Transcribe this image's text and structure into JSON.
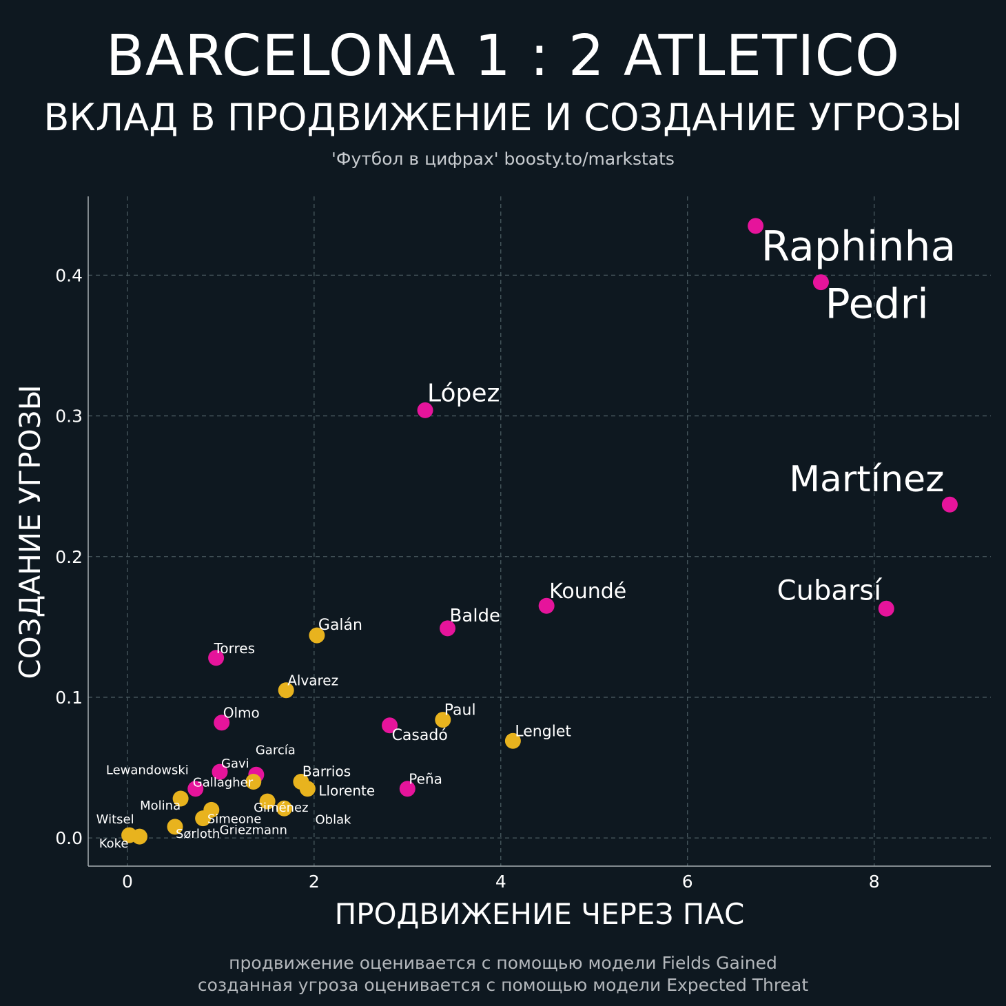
{
  "header": {
    "title": "BARCELONA 1 : 2 ATLETICO",
    "subtitle": "ВКЛАД В ПРОДВИЖЕНИЕ И СОЗДАНИЕ УГРОЗЫ",
    "credit": "'Футбол в цифрах' boosty.to/markstats"
  },
  "footer": {
    "line1": "продвижение оценивается с помощью модели Fields Gained",
    "line2": "созданная угроза оценивается с помощью модели Expected Threat"
  },
  "colors": {
    "background": "#0e1820",
    "barcelona": "#e6149b",
    "atletico": "#e8b31e"
  },
  "chart_data": {
    "type": "scatter",
    "xlabel": "ПРОДВИЖЕНИЕ ЧЕРЕЗ ПАС",
    "ylabel": "СОЗДАНИЕ УГРОЗЫ",
    "xlim": [
      -0.42,
      9.25
    ],
    "ylim": [
      -0.02,
      0.456
    ],
    "xticks": [
      0,
      2,
      4,
      6,
      8
    ],
    "xtick_labels": [
      "0",
      "2",
      "4",
      "6",
      "8"
    ],
    "yticks": [
      0.0,
      0.1,
      0.2,
      0.3,
      0.4
    ],
    "ytick_labels": [
      "0.0",
      "0.1",
      "0.2",
      "0.3",
      "0.4"
    ],
    "grid": true,
    "series": [
      {
        "name": "Barcelona",
        "color": "#e6149b",
        "points": [
          {
            "name": "Raphinha",
            "x": 6.73,
            "y": 0.435
          },
          {
            "name": "Pedri",
            "x": 7.43,
            "y": 0.395
          },
          {
            "name": "López",
            "x": 3.19,
            "y": 0.304
          },
          {
            "name": "Martínez",
            "x": 8.81,
            "y": 0.237
          },
          {
            "name": "Koundé",
            "x": 4.49,
            "y": 0.165
          },
          {
            "name": "Cubarsí",
            "x": 8.13,
            "y": 0.163
          },
          {
            "name": "Balde",
            "x": 3.43,
            "y": 0.149
          },
          {
            "name": "Torres",
            "x": 0.95,
            "y": 0.128
          },
          {
            "name": "Olmo",
            "x": 1.01,
            "y": 0.082
          },
          {
            "name": "Casadó",
            "x": 2.81,
            "y": 0.08
          },
          {
            "name": "Peña",
            "x": 3.0,
            "y": 0.035
          },
          {
            "name": "Gavi",
            "x": 0.99,
            "y": 0.047
          },
          {
            "name": "García",
            "x": 1.38,
            "y": 0.045
          },
          {
            "name": "Lewandowski",
            "x": 0.73,
            "y": 0.035
          }
        ]
      },
      {
        "name": "Atletico",
        "color": "#e8b31e",
        "points": [
          {
            "name": "Galán",
            "x": 2.03,
            "y": 0.144
          },
          {
            "name": "Alvarez",
            "x": 1.7,
            "y": 0.105
          },
          {
            "name": "Paul",
            "x": 3.38,
            "y": 0.084
          },
          {
            "name": "Lenglet",
            "x": 4.13,
            "y": 0.069
          },
          {
            "name": "Barrios",
            "x": 1.86,
            "y": 0.04
          },
          {
            "name": "Llorente",
            "x": 1.93,
            "y": 0.035
          },
          {
            "name": "Gallagher",
            "x": 1.35,
            "y": 0.04
          },
          {
            "name": "Molina",
            "x": 0.57,
            "y": 0.028
          },
          {
            "name": "Giménez",
            "x": 1.5,
            "y": 0.026
          },
          {
            "name": "Oblak",
            "x": 1.68,
            "y": 0.021
          },
          {
            "name": "Simeone",
            "x": 0.9,
            "y": 0.02
          },
          {
            "name": "Griezmann",
            "x": 0.81,
            "y": 0.014
          },
          {
            "name": "Witsel",
            "x": 0.02,
            "y": 0.002
          },
          {
            "name": "Koke",
            "x": 0.13,
            "y": 0.001
          },
          {
            "name": "Sørloth",
            "x": 0.51,
            "y": 0.008
          }
        ]
      }
    ]
  }
}
